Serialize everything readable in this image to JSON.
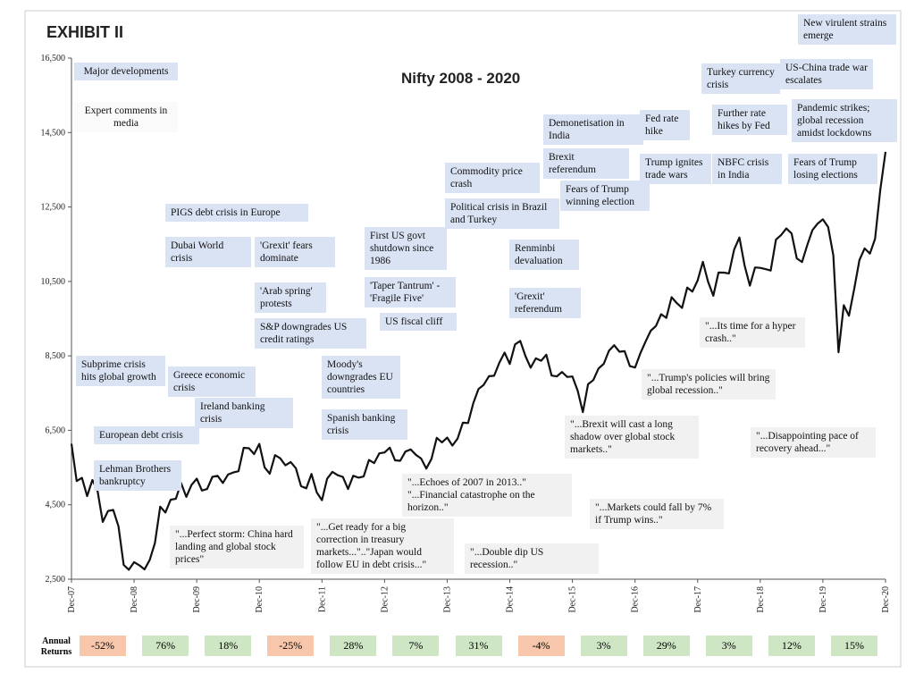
{
  "chart_data": {
    "type": "line",
    "exhibit": "EXHIBIT II",
    "title": "Nifty 2008 - 2020",
    "legend": {
      "developments": "Major developments",
      "media": "Expert comments in media"
    },
    "xlim": [
      0,
      156
    ],
    "xticks": [
      {
        "value": 0,
        "label": "Dec-07"
      },
      {
        "value": 12,
        "label": "Dec-08"
      },
      {
        "value": 24,
        "label": "Dec-09"
      },
      {
        "value": 36,
        "label": "Dec-10"
      },
      {
        "value": 48,
        "label": "Dec-11"
      },
      {
        "value": 60,
        "label": "Dec-12"
      },
      {
        "value": 72,
        "label": "Dec-13"
      },
      {
        "value": 84,
        "label": "Dec-14"
      },
      {
        "value": 96,
        "label": "Dec-15"
      },
      {
        "value": 108,
        "label": "Dec-16"
      },
      {
        "value": 120,
        "label": "Dec-17"
      },
      {
        "value": 132,
        "label": "Dec-18"
      },
      {
        "value": 144,
        "label": "Dec-19"
      },
      {
        "value": 156,
        "label": "Dec-20"
      }
    ],
    "ylim": [
      2500,
      16500
    ],
    "yticks": [
      {
        "value": 2500,
        "label": "2,500"
      },
      {
        "value": 4500,
        "label": "4,500"
      },
      {
        "value": 6500,
        "label": "6,500"
      },
      {
        "value": 8500,
        "label": "8,500"
      },
      {
        "value": 10500,
        "label": "10,500"
      },
      {
        "value": 12500,
        "label": "12,500"
      },
      {
        "value": 14500,
        "label": "14,500"
      },
      {
        "value": 16500,
        "label": "16,500"
      }
    ],
    "series": [
      {
        "name": "Nifty",
        "color": "#111111",
        "x": [
          0,
          1,
          2,
          3,
          4,
          5,
          6,
          7,
          8,
          9,
          10,
          11,
          12,
          13,
          14,
          15,
          16,
          17,
          18,
          19,
          20,
          21,
          22,
          23,
          24,
          25,
          26,
          27,
          28,
          29,
          30,
          31,
          32,
          33,
          34,
          35,
          36,
          37,
          38,
          39,
          40,
          41,
          42,
          43,
          44,
          45,
          46,
          47,
          48,
          49,
          50,
          51,
          52,
          53,
          54,
          55,
          56,
          57,
          58,
          59,
          60,
          61,
          62,
          63,
          64,
          65,
          66,
          67,
          68,
          69,
          70,
          71,
          72,
          73,
          74,
          75,
          76,
          77,
          78,
          79,
          80,
          81,
          82,
          83,
          84,
          85,
          86,
          87,
          88,
          89,
          90,
          91,
          92,
          93,
          94,
          95,
          96,
          97,
          98,
          99,
          100,
          101,
          102,
          103,
          104,
          105,
          106,
          107,
          108,
          109,
          110,
          111,
          112,
          113,
          114,
          115,
          116,
          117,
          118,
          119,
          120,
          121,
          122,
          123,
          124,
          125,
          126,
          127,
          128,
          129,
          130,
          131,
          132,
          133,
          134,
          135,
          136,
          137,
          138,
          139,
          140,
          141,
          142,
          143,
          144,
          145,
          146,
          147,
          148,
          149,
          150,
          151,
          152,
          153,
          154,
          155,
          156
        ],
        "values": [
          6138,
          5137,
          5223,
          4734,
          5165,
          4870,
          4040,
          4332,
          4360,
          3921,
          2885,
          2755,
          2959,
          2874,
          2763,
          3021,
          3474,
          4449,
          4291,
          4636,
          4662,
          5084,
          4712,
          5032,
          5201,
          4882,
          4922,
          5249,
          5278,
          5087,
          5313,
          5368,
          5402,
          6030,
          6018,
          5863,
          6135,
          5506,
          5333,
          5834,
          5750,
          5560,
          5647,
          5482,
          5001,
          4943,
          5327,
          4832,
          4624,
          5199,
          5385,
          5296,
          5248,
          4924,
          5279,
          5229,
          5259,
          5703,
          5620,
          5880,
          5905,
          6035,
          5693,
          5683,
          5930,
          5986,
          5842,
          5742,
          5472,
          5735,
          6299,
          6176,
          6304,
          6090,
          6277,
          6704,
          6696,
          7230,
          7611,
          7721,
          7954,
          7965,
          8322,
          8588,
          8283,
          8809,
          8902,
          8491,
          8182,
          8434,
          8369,
          8533,
          7971,
          7949,
          8066,
          7935,
          7946,
          7564,
          6987,
          7738,
          7850,
          8160,
          8288,
          8639,
          8786,
          8611,
          8626,
          8224,
          8186,
          8561,
          8880,
          9174,
          9304,
          9621,
          9521,
          10077,
          9918,
          9789,
          10335,
          10227,
          10531,
          11028,
          10493,
          10114,
          10739,
          10736,
          10714,
          11356,
          11681,
          10930,
          10387,
          10877,
          10863,
          10831,
          10793,
          11624,
          11748,
          11923,
          11789,
          11118,
          11023,
          11474,
          11877,
          12056,
          12168,
          11962,
          11202,
          8598,
          9860,
          9580,
          10302,
          11073,
          11388,
          11248,
          11642,
          12969,
          13982
        ]
      }
    ],
    "developments": [
      "Subprime crisis hits global growth",
      "European debt crisis",
      "Lehman Brothers bankruptcy",
      "Greece economic crisis",
      "PIGS debt crisis in Europe",
      "Dubai World crisis",
      "Ireland banking crisis",
      "'Grexit' fears dominate",
      "'Arab spring' protests",
      "S&P downgrades US credit ratings",
      "Moody's downgrades EU countries",
      "Spanish banking crisis",
      "First US govt shutdown since 1986",
      "'Taper Tantrum' - 'Fragile Five'",
      "US fiscal cliff",
      "Commodity price crash",
      "Political crisis in Brazil and Turkey",
      "Renminbi devaluation",
      "'Grexit' referendum",
      "Demonetisation in India",
      "Brexit referendum",
      "Fears of Trump winning election",
      "Fed rate hike",
      "Trump ignites trade wars",
      "Further rate hikes by Fed",
      "NBFC crisis in India",
      "Turkey currency crisis",
      "US-China trade war escalates",
      "New virulent strains emerge",
      "Pandemic strikes; global recession amidst lockdowns",
      "Fears of Trump losing elections"
    ],
    "media": [
      "\"...Perfect storm: China hard landing and global stock prices\"",
      "\"...Get ready for a big correction in treasury markets...\"..\"Japan would follow EU in debt crisis...\"",
      "\"...Echoes of 2007 in 2013..\" \"...Financial catastrophe on the horizon..\"",
      "\"...Double dip US recession..\"",
      "\"...Brexit will cast a long shadow over global stock markets..\"",
      "\"...Markets could fall by 7% if Trump wins..\"",
      "\"...Trump's policies will bring global recession..\"",
      "\"...Its time for a hyper crash..\"",
      "\"...Disappointing pace of recovery ahead...\""
    ],
    "annual_returns": {
      "label": "Annual Returns",
      "values": [
        -52,
        76,
        18,
        -25,
        28,
        7,
        31,
        -4,
        3,
        29,
        3,
        12,
        15
      ],
      "value_labels": [
        "-52%",
        "76%",
        "18%",
        "-25%",
        "28%",
        "7%",
        "31%",
        "-4%",
        "3%",
        "29%",
        "3%",
        "12%",
        "15%"
      ],
      "positive_color": "#cfe6c4",
      "negative_color": "#f7c6ab"
    }
  }
}
